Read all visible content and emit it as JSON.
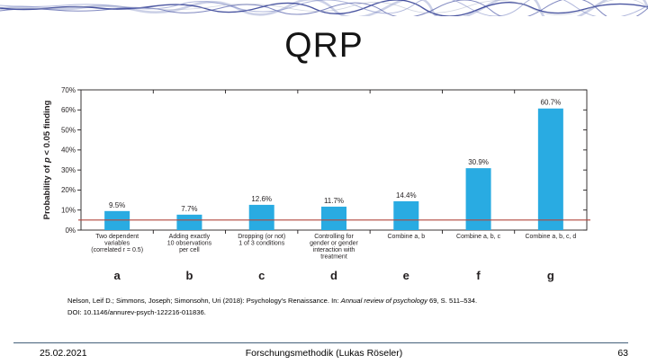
{
  "slide": {
    "title": "QRP",
    "citation": {
      "line1_plain": "Nelson, Leif D.; Simmons, Joseph; Simonsohn, Uri (2018): Psychology's Renaissance. In: ",
      "line1_italic": "Annual review of psychology",
      "line1_rest": " 69, S. 511–534.",
      "line2": "DOI: 10.1146/annurev-psych-122216-011836."
    },
    "footer": {
      "date": "25.02.2021",
      "center": "Forschungsmethodik (Lukas Röseler)",
      "page": "63"
    }
  },
  "chart_data": {
    "type": "bar",
    "title": "",
    "ylabel_pre": "Probability of ",
    "ylabel_italic": "p",
    "ylabel_post": " < 0.05 finding",
    "ylim": [
      0,
      70
    ],
    "yticks": [
      0,
      10,
      20,
      30,
      40,
      50,
      60,
      70
    ],
    "ytick_suffix": "%",
    "grid": "off",
    "bar_color": "#29abe2",
    "axis_color": "#231f20",
    "text_color": "#231f20",
    "reference_line": {
      "value": 5,
      "color": "#b2473e"
    },
    "categories": [
      {
        "letter": "a",
        "label_lines": [
          "Two dependent",
          "variables",
          "(correlated r = 0.5)"
        ],
        "value": 9.5,
        "value_label": "9.5%"
      },
      {
        "letter": "b",
        "label_lines": [
          "Adding exactly",
          "10 observations",
          "per cell"
        ],
        "value": 7.7,
        "value_label": "7.7%"
      },
      {
        "letter": "c",
        "label_lines": [
          "Dropping (or not)",
          "1 of 3 conditions"
        ],
        "value": 12.6,
        "value_label": "12.6%"
      },
      {
        "letter": "d",
        "label_lines": [
          "Controlling for",
          "gender or gender",
          "interaction with",
          "treatment"
        ],
        "value": 11.7,
        "value_label": "11.7%"
      },
      {
        "letter": "e",
        "label_lines": [
          "Combine a, b"
        ],
        "value": 14.4,
        "value_label": "14.4%"
      },
      {
        "letter": "f",
        "label_lines": [
          "Combine a, b, c"
        ],
        "value": 30.9,
        "value_label": "30.9%"
      },
      {
        "letter": "g",
        "label_lines": [
          "Combine a, b, c, d"
        ],
        "value": 60.7,
        "value_label": "60.7%"
      }
    ]
  }
}
